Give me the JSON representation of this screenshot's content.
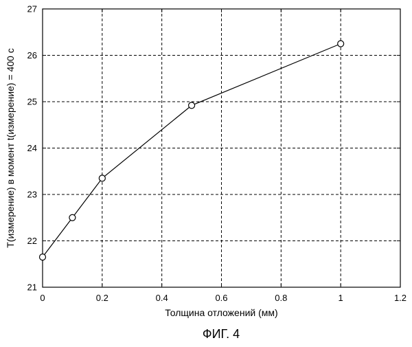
{
  "figure": {
    "caption": "ФИГ. 4"
  },
  "chart_data": {
    "type": "line",
    "title": "",
    "xlabel": "Толщина отложений (мм)",
    "ylabel": "T(измерение) в момент t(измерение) = 400 с",
    "xlim": [
      0,
      1.2
    ],
    "ylim": [
      21,
      27
    ],
    "x_ticks": [
      0,
      0.2,
      0.4,
      0.6,
      0.8,
      1,
      1.2
    ],
    "x_tick_labels": [
      "0",
      "0.2",
      "0.4",
      "0.6",
      "0.8",
      "1",
      "1.2"
    ],
    "y_ticks": [
      21,
      22,
      23,
      24,
      25,
      26,
      27
    ],
    "y_tick_labels": [
      "21",
      "22",
      "23",
      "24",
      "25",
      "26",
      "27"
    ],
    "grid": true,
    "grid_style": "dashed",
    "marker": "open-circle",
    "line_color": "#000000",
    "series": [
      {
        "x": [
          0,
          0.1,
          0.2,
          0.5,
          1.0
        ],
        "y": [
          21.65,
          22.5,
          23.35,
          24.92,
          26.25
        ]
      }
    ]
  }
}
